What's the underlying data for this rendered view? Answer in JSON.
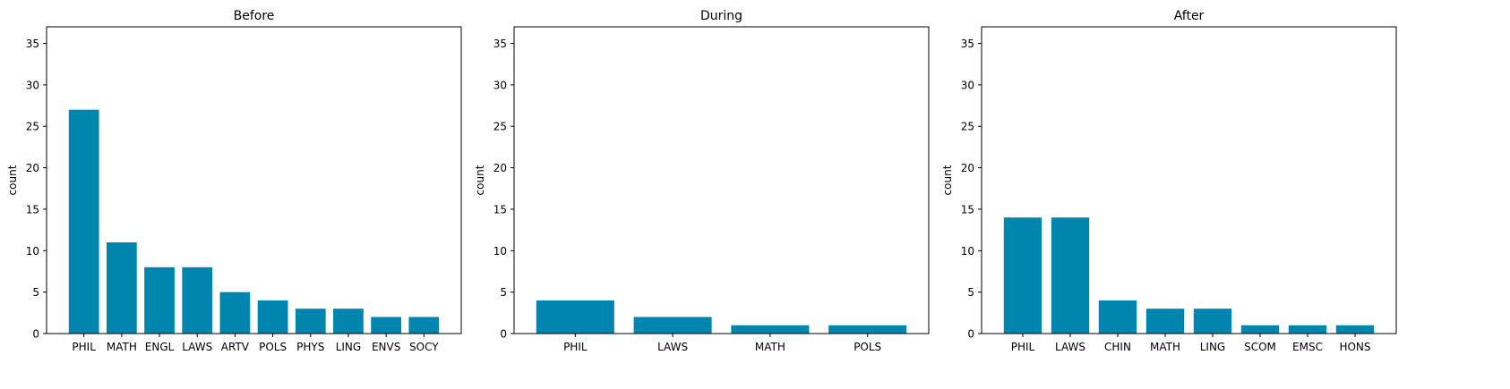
{
  "chart_data": [
    {
      "type": "bar",
      "title": "Before",
      "xlabel": "",
      "ylabel": "count",
      "ylim": [
        0,
        37
      ],
      "yticks": [
        0,
        5,
        10,
        15,
        20,
        25,
        30,
        35
      ],
      "categories": [
        "PHIL",
        "MATH",
        "ENGL",
        "LAWS",
        "ARTV",
        "POLS",
        "PHYS",
        "LING",
        "ENVS",
        "SOCY"
      ],
      "values": [
        27,
        11,
        8,
        8,
        5,
        4,
        3,
        3,
        2,
        2
      ],
      "bar_color": "#0086ae"
    },
    {
      "type": "bar",
      "title": "During",
      "xlabel": "",
      "ylabel": "count",
      "ylim": [
        0,
        37
      ],
      "yticks": [
        0,
        5,
        10,
        15,
        20,
        25,
        30,
        35
      ],
      "categories": [
        "PHIL",
        "LAWS",
        "MATH",
        "POLS"
      ],
      "values": [
        4,
        2,
        1,
        1
      ],
      "bar_color": "#0086ae"
    },
    {
      "type": "bar",
      "title": "After",
      "xlabel": "",
      "ylabel": "count",
      "ylim": [
        0,
        37
      ],
      "yticks": [
        0,
        5,
        10,
        15,
        20,
        25,
        30,
        35
      ],
      "categories": [
        "PHIL",
        "LAWS",
        "CHIN",
        "MATH",
        "LING",
        "SCOM",
        "EMSC",
        "HONS"
      ],
      "values": [
        14,
        14,
        4,
        3,
        3,
        1,
        1,
        1
      ],
      "bar_color": "#0086ae"
    }
  ]
}
